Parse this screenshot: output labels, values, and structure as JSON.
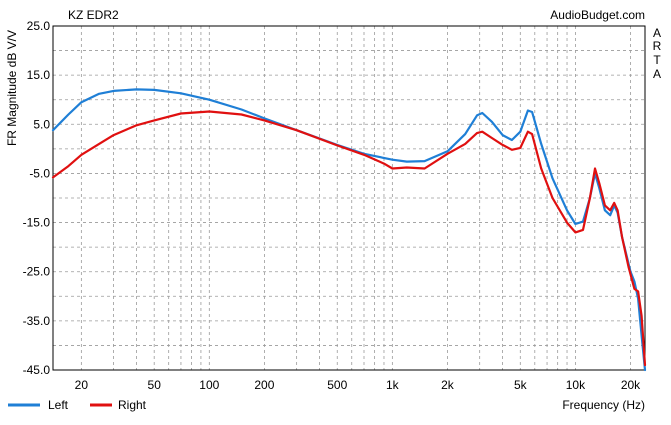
{
  "chart_data": {
    "type": "line",
    "title": "KZ EDR2",
    "watermark": "AudioBudget.com",
    "side_label": [
      "A",
      "R",
      "T",
      "A"
    ],
    "xlabel": "Frequency (Hz)",
    "ylabel": "FR Magnitude dB V/V",
    "x_scale": "log",
    "xlim": [
      14,
      24000
    ],
    "ylim": [
      -45,
      25
    ],
    "grid": true,
    "legend_position": "bottom-left",
    "y_ticks": [
      25.0,
      15.0,
      5.0,
      -5.0,
      -15.0,
      -25.0,
      -35.0,
      -45.0
    ],
    "y_tick_labels": [
      "25.0",
      "15.0",
      "5.0",
      "-5.0",
      "-15.0",
      "-25.0",
      "-35.0",
      "-45.0"
    ],
    "x_ticks": [
      20,
      50,
      100,
      200,
      500,
      1000,
      2000,
      5000,
      10000,
      20000
    ],
    "x_tick_labels": [
      "20",
      "50",
      "100",
      "200",
      "500",
      "1k",
      "2k",
      "5k",
      "10k",
      "20k"
    ],
    "series": [
      {
        "name": "Left",
        "color": "#1f7fd6",
        "points": [
          [
            14,
            3.8
          ],
          [
            17,
            7.0
          ],
          [
            20,
            9.5
          ],
          [
            25,
            11.2
          ],
          [
            30,
            11.8
          ],
          [
            40,
            12.1
          ],
          [
            50,
            12.0
          ],
          [
            70,
            11.3
          ],
          [
            100,
            10.0
          ],
          [
            150,
            8.0
          ],
          [
            200,
            6.2
          ],
          [
            300,
            3.8
          ],
          [
            500,
            0.8
          ],
          [
            700,
            -1.0
          ],
          [
            1000,
            -2.2
          ],
          [
            1200,
            -2.6
          ],
          [
            1500,
            -2.5
          ],
          [
            2000,
            -0.5
          ],
          [
            2500,
            3.0
          ],
          [
            2900,
            6.8
          ],
          [
            3100,
            7.3
          ],
          [
            3500,
            5.5
          ],
          [
            4000,
            2.8
          ],
          [
            4500,
            1.8
          ],
          [
            5000,
            3.5
          ],
          [
            5500,
            7.8
          ],
          [
            5800,
            7.5
          ],
          [
            6500,
            1.0
          ],
          [
            7500,
            -6.0
          ],
          [
            9000,
            -12.5
          ],
          [
            10000,
            -15.3
          ],
          [
            11000,
            -14.8
          ],
          [
            12000,
            -10.0
          ],
          [
            12800,
            -5.0
          ],
          [
            13500,
            -8.0
          ],
          [
            14500,
            -12.5
          ],
          [
            15500,
            -13.5
          ],
          [
            16300,
            -11.5
          ],
          [
            17000,
            -13.0
          ],
          [
            18000,
            -18.0
          ],
          [
            20000,
            -25.0
          ],
          [
            21000,
            -27.0
          ],
          [
            22000,
            -30.5
          ],
          [
            23000,
            -38.0
          ],
          [
            24000,
            -45.0
          ]
        ]
      },
      {
        "name": "Right",
        "color": "#e01010",
        "points": [
          [
            14,
            -5.8
          ],
          [
            17,
            -3.5
          ],
          [
            20,
            -1.2
          ],
          [
            25,
            1.0
          ],
          [
            30,
            2.8
          ],
          [
            40,
            4.8
          ],
          [
            50,
            5.8
          ],
          [
            70,
            7.2
          ],
          [
            100,
            7.6
          ],
          [
            150,
            7.0
          ],
          [
            200,
            5.8
          ],
          [
            300,
            3.8
          ],
          [
            500,
            0.7
          ],
          [
            700,
            -1.2
          ],
          [
            900,
            -3.0
          ],
          [
            1000,
            -4.0
          ],
          [
            1200,
            -3.8
          ],
          [
            1500,
            -4.0
          ],
          [
            2000,
            -1.0
          ],
          [
            2500,
            1.0
          ],
          [
            2900,
            3.2
          ],
          [
            3100,
            3.5
          ],
          [
            3500,
            2.2
          ],
          [
            4000,
            0.8
          ],
          [
            4500,
            -0.2
          ],
          [
            5000,
            0.2
          ],
          [
            5500,
            3.5
          ],
          [
            5800,
            3.0
          ],
          [
            6500,
            -4.0
          ],
          [
            7500,
            -10.0
          ],
          [
            9000,
            -15.0
          ],
          [
            10000,
            -17.0
          ],
          [
            11000,
            -16.5
          ],
          [
            12000,
            -10.0
          ],
          [
            12800,
            -4.0
          ],
          [
            13500,
            -7.0
          ],
          [
            14500,
            -11.5
          ],
          [
            15500,
            -12.5
          ],
          [
            16300,
            -11.0
          ],
          [
            17000,
            -12.5
          ],
          [
            18000,
            -18.0
          ],
          [
            19500,
            -24.0
          ],
          [
            21000,
            -28.5
          ],
          [
            22000,
            -29.0
          ],
          [
            23000,
            -34.0
          ],
          [
            24000,
            -44.0
          ]
        ]
      }
    ]
  }
}
